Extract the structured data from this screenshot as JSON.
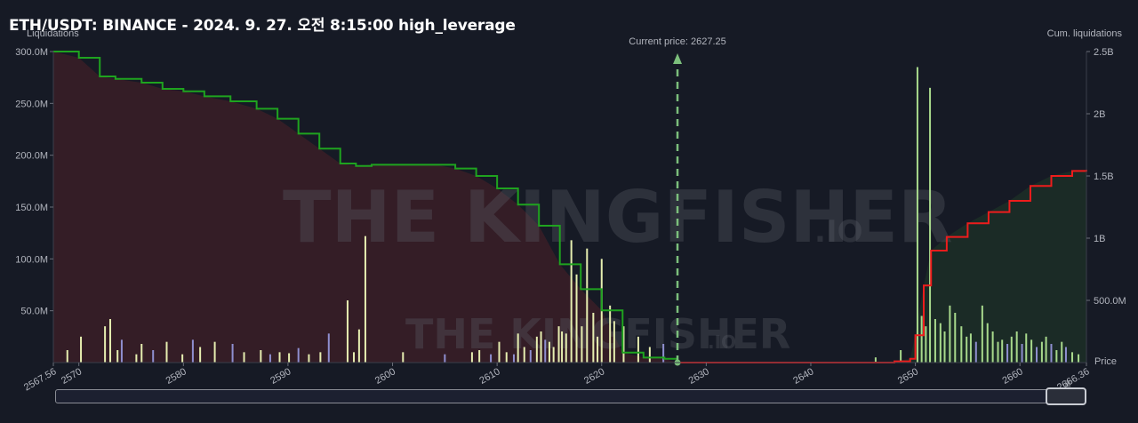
{
  "title": "ETH/USDT: BINANCE - 2024. 9. 27. 오전 8:15:00 high_leverage",
  "left_axis_label": "Liquidations",
  "right_axis_label": "Cum. liquidations",
  "price_axis_label": "Price",
  "current_price_label": "Current price: 2627.25",
  "watermark": {
    "text": "THE KINGFISHER",
    "suffix": ".IO"
  },
  "colors": {
    "background": "#161a25",
    "short_cum_line": "#1fa31f",
    "long_cum_line": "#ee1c1c",
    "left_fill": "#3a1f27",
    "right_fill": "#1c2e27",
    "current_price_line": "#7cbf7c",
    "bar_light": "#e6eeb0",
    "bar_green": "#a8d98c",
    "bar_purple": "#8f8fd0"
  },
  "chart_data": {
    "type": "bar",
    "title": "ETH/USDT: BINANCE - 2024. 9. 27. 오전 8:15:00 high_leverage",
    "xlabel": "Price",
    "ylabel": "Liquidations",
    "y2label": "Cum. liquidations",
    "xlim": [
      2567.56,
      2666.36
    ],
    "ylim": [
      0,
      300000000
    ],
    "y2lim": [
      0,
      2500000000
    ],
    "x_ticks": [
      "2567.56",
      "2570",
      "2580",
      "2590",
      "2600",
      "2610",
      "2620",
      "2630",
      "2640",
      "2650",
      "2660",
      "2666.36"
    ],
    "y_ticks": [
      "50.0M",
      "100.0M",
      "150.0M",
      "200.0M",
      "250.0M",
      "300.0M"
    ],
    "y2_ticks": [
      "500.0M",
      "1B",
      "1.5B",
      "2B",
      "2.5B"
    ],
    "current_price": 2627.25,
    "series": [
      {
        "role": "liquidation_bars",
        "x": [
          2568.9,
          2570.2,
          2572.5,
          2573.0,
          2573.7,
          2574.1,
          2575.5,
          2576.0,
          2577.1,
          2578.4,
          2579.9,
          2580.9,
          2581.6,
          2583.0,
          2584.7,
          2585.8,
          2587.4,
          2588.3,
          2589.2,
          2590.1,
          2591.0,
          2592.0,
          2593.1,
          2593.9,
          2595.7,
          2596.3,
          2596.8,
          2597.4,
          2601.0,
          2605.0,
          2607.6,
          2608.3,
          2609.4,
          2610.2,
          2610.9,
          2611.6,
          2612.0,
          2612.6,
          2613.2,
          2613.8,
          2614.2,
          2614.6,
          2615.0,
          2615.4,
          2615.9,
          2616.2,
          2616.6,
          2617.1,
          2617.6,
          2618.1,
          2618.6,
          2619.2,
          2619.6,
          2620.0,
          2620.8,
          2621.2,
          2622.1,
          2623.5,
          2624.6,
          2625.9,
          2646.2,
          2648.6,
          2650.2,
          2650.6,
          2651.0,
          2651.4,
          2651.9,
          2652.4,
          2652.8,
          2653.3,
          2653.8,
          2654.4,
          2654.9,
          2655.3,
          2655.8,
          2656.4,
          2656.9,
          2657.4,
          2657.9,
          2658.3,
          2658.8,
          2659.2,
          2659.7,
          2660.2,
          2660.6,
          2661.1,
          2661.6,
          2662.1,
          2662.5,
          2663.0,
          2663.5,
          2664.0,
          2664.4,
          2665.0,
          2665.6
        ],
        "values": [
          12,
          25,
          35,
          42,
          12,
          22,
          8,
          18,
          12,
          20,
          8,
          22,
          15,
          20,
          18,
          10,
          12,
          8,
          10,
          9,
          14,
          8,
          10,
          28,
          60,
          10,
          32,
          122,
          10,
          8,
          10,
          12,
          8,
          20,
          10,
          8,
          28,
          15,
          12,
          25,
          30,
          22,
          20,
          15,
          35,
          30,
          28,
          118,
          85,
          35,
          110,
          48,
          25,
          100,
          55,
          40,
          35,
          25,
          15,
          18,
          5,
          12,
          285,
          45,
          35,
          265,
          42,
          38,
          30,
          55,
          48,
          35,
          25,
          28,
          20,
          55,
          38,
          30,
          20,
          22,
          18,
          25,
          30,
          18,
          28,
          22,
          15,
          20,
          25,
          18,
          12,
          20,
          15,
          10,
          8
        ],
        "colors_by_index_note": "mixed light/green/purple"
      },
      {
        "role": "cumulative_short_side",
        "x": [
          2567.56,
          2570.0,
          2572.0,
          2573.5,
          2576.0,
          2578.0,
          2580.0,
          2582.0,
          2584.5,
          2587.0,
          2589.0,
          2591.0,
          2593.0,
          2595.0,
          2596.5,
          2598.0,
          2600.0,
          2604.0,
          2606.0,
          2608.0,
          2610.0,
          2612.0,
          2614.0,
          2616.0,
          2618.0,
          2620.0,
          2622.0,
          2624.0,
          2626.0,
          2627.25
        ],
        "values": [
          2500,
          2450,
          2300,
          2280,
          2250,
          2200,
          2180,
          2140,
          2100,
          2040,
          1960,
          1840,
          1720,
          1600,
          1580,
          1590,
          1590,
          1590,
          1560,
          1500,
          1400,
          1270,
          1100,
          790,
          590,
          420,
          80,
          40,
          30,
          0
        ]
      },
      {
        "role": "cumulative_long_side",
        "x": [
          2627.25,
          2635.0,
          2645.0,
          2648.0,
          2649.5,
          2650.0,
          2650.8,
          2651.5,
          2653.0,
          2655.0,
          2657.0,
          2659.0,
          2661.0,
          2663.0,
          2665.0,
          2666.36
        ],
        "values": [
          0,
          0,
          0,
          10,
          30,
          220,
          620,
          900,
          1010,
          1120,
          1210,
          1300,
          1420,
          1500,
          1540,
          1550
        ]
      }
    ],
    "grid": false,
    "legend": "none"
  }
}
